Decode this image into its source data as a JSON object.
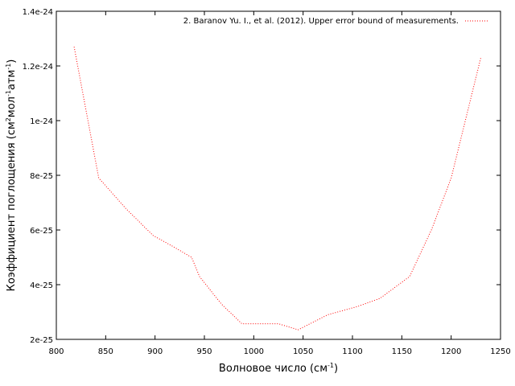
{
  "chart_data": {
    "type": "line",
    "title": "",
    "xlabel": {
      "prefix": "Волновое число (см",
      "sup": "-1",
      "suffix": ")"
    },
    "ylabel": {
      "part1": "Коэффициент поглощения (см",
      "sup1": "2",
      "part2": "мол",
      "sup2": "-1",
      "part3": "атм",
      "sup3": "-1",
      "part4": ")"
    },
    "xlim": [
      800,
      1250
    ],
    "ylim": [
      2e-25,
      1.4e-24
    ],
    "x_ticks": [
      800,
      850,
      900,
      950,
      1000,
      1050,
      1100,
      1150,
      1200,
      1250
    ],
    "x_tick_labels": [
      "800",
      "850",
      "900",
      "950",
      "1000",
      "1050",
      "1100",
      "1150",
      "1200",
      "1250"
    ],
    "y_ticks": [
      2e-25,
      4e-25,
      6e-25,
      8e-25,
      1e-24,
      1.2e-24,
      1.4e-24
    ],
    "y_tick_labels": [
      "2e-25",
      "4e-25",
      "6e-25",
      "8e-25",
      "1e-24",
      "1.2e-24",
      "1.4e-24"
    ],
    "grid": false,
    "legend_position": "top-right",
    "series": [
      {
        "name": "2. Baranov Yu. I., et al. (2012). Upper error bound of measurements.",
        "color": "#ff0000",
        "style": "dotted",
        "x": [
          818,
          843,
          870,
          898,
          918,
          937,
          945,
          967,
          988,
          1025,
          1045,
          1075,
          1105,
          1128,
          1158,
          1180,
          1200,
          1215,
          1230
        ],
        "y": [
          1.27e-24,
          7.9e-25,
          6.8e-25,
          5.8e-25,
          5.4e-25,
          5e-25,
          4.3e-25,
          3.3e-25,
          2.57e-25,
          2.57e-25,
          2.35e-25,
          2.9e-25,
          3.2e-25,
          3.5e-25,
          4.3e-25,
          6e-25,
          7.9e-25,
          1.01e-24,
          1.23e-24
        ]
      }
    ]
  }
}
